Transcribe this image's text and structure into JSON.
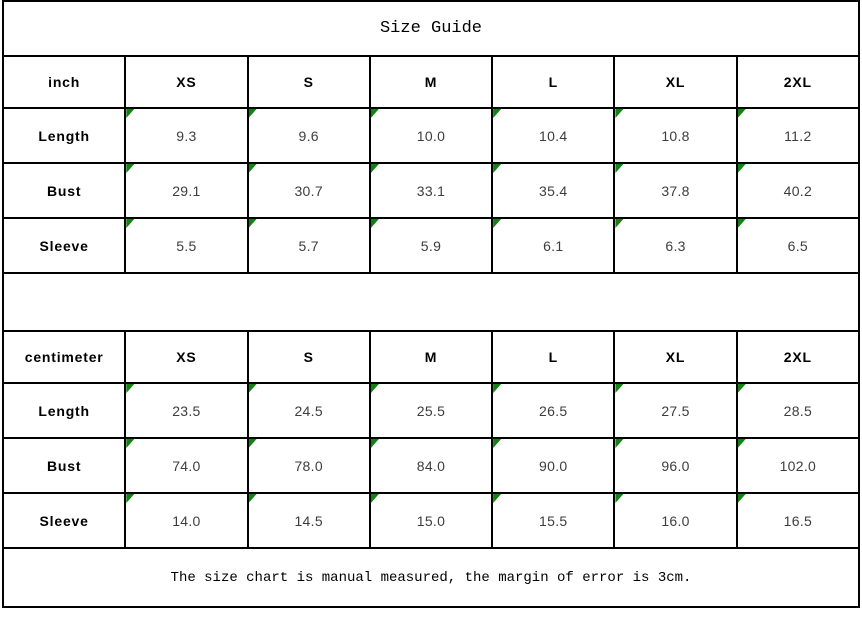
{
  "title": "Size Guide",
  "colors": {
    "marker_green": "#128212",
    "border_black": "#000000",
    "value_text": "#3d3d3d"
  },
  "sections": [
    {
      "unit_label": "inch",
      "size_headers": [
        "XS",
        "S",
        "M",
        "L",
        "XL",
        "2XL"
      ],
      "rows": [
        {
          "label": "Length",
          "values": [
            "9.3",
            "9.6",
            "10.0",
            "10.4",
            "10.8",
            "11.2"
          ]
        },
        {
          "label": "Bust",
          "values": [
            "29.1",
            "30.7",
            "33.1",
            "35.4",
            "37.8",
            "40.2"
          ]
        },
        {
          "label": "Sleeve",
          "values": [
            "5.5",
            "5.7",
            "5.9",
            "6.1",
            "6.3",
            "6.5"
          ]
        }
      ]
    },
    {
      "unit_label": "centimeter",
      "size_headers": [
        "XS",
        "S",
        "M",
        "L",
        "XL",
        "2XL"
      ],
      "rows": [
        {
          "label": "Length",
          "values": [
            "23.5",
            "24.5",
            "25.5",
            "26.5",
            "27.5",
            "28.5"
          ]
        },
        {
          "label": "Bust",
          "values": [
            "74.0",
            "78.0",
            "84.0",
            "90.0",
            "96.0",
            "102.0"
          ]
        },
        {
          "label": "Sleeve",
          "values": [
            "14.0",
            "14.5",
            "15.0",
            "15.5",
            "16.0",
            "16.5"
          ]
        }
      ]
    }
  ],
  "footer_note": "The size chart is manual measured, the margin of error is 3cm."
}
